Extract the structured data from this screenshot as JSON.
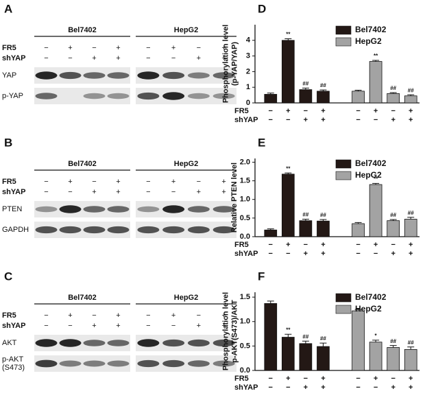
{
  "panels": [
    {
      "letter": "A",
      "groups": [
        "Bel7402",
        "HepG2"
      ],
      "conditions": [
        {
          "name": "FR5",
          "signs": [
            "−",
            "+",
            "−",
            "+",
            "−",
            "+",
            "−",
            "+"
          ]
        },
        {
          "name": "shYAP",
          "signs": [
            "−",
            "−",
            "+",
            "+",
            "−",
            "−",
            "+",
            "+"
          ]
        }
      ],
      "rows": [
        [
          "YAP"
        ],
        [
          "p-YAP"
        ]
      ]
    },
    {
      "letter": "B",
      "groups": [
        "Bel7402",
        "HepG2"
      ],
      "conditions": [
        {
          "name": "FR5",
          "signs": [
            "−",
            "+",
            "−",
            "+",
            "−",
            "+",
            "−",
            "+"
          ]
        },
        {
          "name": "shYAP",
          "signs": [
            "−",
            "−",
            "+",
            "+",
            "−",
            "−",
            "+",
            "+"
          ]
        }
      ],
      "rows": [
        [
          "PTEN"
        ],
        [
          "GAPDH"
        ]
      ]
    },
    {
      "letter": "C",
      "groups": [
        "Bel7402",
        "HepG2"
      ],
      "conditions": [
        {
          "name": "FR5",
          "signs": [
            "−",
            "+",
            "−",
            "+",
            "−",
            "+",
            "−",
            "+"
          ]
        },
        {
          "name": "shYAP",
          "signs": [
            "−",
            "−",
            "+",
            "+",
            "−",
            "−",
            "+",
            "+"
          ]
        }
      ],
      "rows": [
        [
          "AKT"
        ],
        [
          "p-AKT",
          "(S473)"
        ]
      ]
    }
  ],
  "chart_data": [
    {
      "type": "bar",
      "panel_label": "D",
      "ylabel": [
        "Phosphorylation level",
        "(p-YAP/YAP)"
      ],
      "ylim": [
        0,
        5
      ],
      "yticks": [
        0,
        1,
        2,
        3,
        4
      ],
      "legend": "top-right",
      "conditions": [
        {
          "name": "FR5",
          "signs": [
            "−",
            "+",
            "−",
            "+",
            "−",
            "+",
            "−",
            "+"
          ]
        },
        {
          "name": "shYAP",
          "signs": [
            "−",
            "−",
            "+",
            "+",
            "−",
            "−",
            "+",
            "+"
          ]
        }
      ],
      "series": [
        {
          "name": "Bel7402",
          "color": "#231815",
          "values": [
            0.55,
            4.0,
            0.85,
            0.75
          ],
          "errors": [
            0.08,
            0.1,
            0.1,
            0.08
          ],
          "annotations": [
            null,
            "**",
            "##",
            "##"
          ]
        },
        {
          "name": "HepG2",
          "color": "#a3a3a3",
          "values": [
            0.75,
            2.65,
            0.6,
            0.45
          ],
          "errors": [
            0.06,
            0.07,
            0.06,
            0.07
          ],
          "annotations": [
            null,
            "**",
            "##",
            "##"
          ]
        }
      ]
    },
    {
      "type": "bar",
      "panel_label": "E",
      "ylabel": [
        "Relative PTEN level"
      ],
      "ylim": [
        0,
        2.1
      ],
      "yticks": [
        {
          "value": 0,
          "label": "0.0"
        },
        0.5,
        {
          "value": 1,
          "label": "1.0"
        },
        1.5,
        {
          "value": 2,
          "label": "2.0"
        }
      ],
      "legend": "top-right",
      "conditions": [
        {
          "name": "FR5",
          "signs": [
            "−",
            "+",
            "−",
            "+",
            "−",
            "+",
            "−",
            "+"
          ]
        },
        {
          "name": "shYAP",
          "signs": [
            "−",
            "−",
            "+",
            "+",
            "−",
            "−",
            "+",
            "+"
          ]
        }
      ],
      "series": [
        {
          "name": "Bel7402",
          "color": "#231815",
          "values": [
            0.18,
            1.68,
            0.43,
            0.42
          ],
          "errors": [
            0.03,
            0.03,
            0.04,
            0.04
          ],
          "annotations": [
            null,
            "**",
            "##",
            "##"
          ]
        },
        {
          "name": "HepG2",
          "color": "#a3a3a3",
          "values": [
            0.35,
            1.4,
            0.43,
            0.47
          ],
          "errors": [
            0.03,
            0.03,
            0.03,
            0.05
          ],
          "annotations": [
            null,
            "**",
            "##",
            "##"
          ]
        }
      ]
    },
    {
      "type": "bar",
      "panel_label": "F",
      "ylabel": [
        "Phosphorylation level",
        "p-AKT(S473)/AKT"
      ],
      "ylim": [
        0,
        1.6
      ],
      "yticks": [
        {
          "value": 0,
          "label": "0.0"
        },
        0.5,
        {
          "value": 1,
          "label": "1.0"
        },
        1.5
      ],
      "legend": "top-right",
      "conditions": [
        {
          "name": "FR5",
          "signs": [
            "−",
            "+",
            "−",
            "+",
            "−",
            "+",
            "−",
            "+"
          ]
        },
        {
          "name": "shYAP",
          "signs": [
            "−",
            "−",
            "+",
            "+",
            "−",
            "−",
            "+",
            "+"
          ]
        }
      ],
      "series": [
        {
          "name": "Bel7402",
          "color": "#231815",
          "values": [
            1.37,
            0.68,
            0.55,
            0.49
          ],
          "errors": [
            0.05,
            0.06,
            0.05,
            0.07
          ],
          "annotations": [
            null,
            "**",
            "##",
            "##"
          ]
        },
        {
          "name": "HepG2",
          "color": "#a3a3a3",
          "values": [
            1.22,
            0.58,
            0.47,
            0.43
          ],
          "errors": [
            0.03,
            0.04,
            0.04,
            0.05
          ],
          "annotations": [
            null,
            "*",
            "##",
            "##"
          ]
        }
      ]
    }
  ]
}
